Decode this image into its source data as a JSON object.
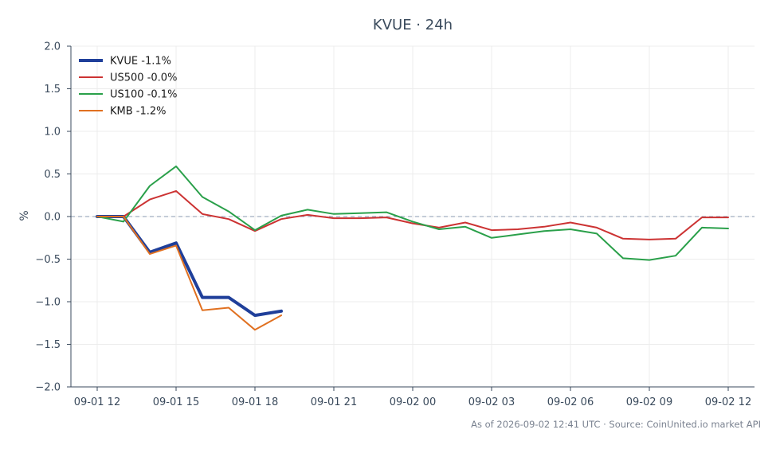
{
  "chart_data": {
    "type": "line",
    "title": "KVUE · 24h",
    "xlabel": "",
    "ylabel": "%",
    "ylim": [
      -2.0,
      2.0
    ],
    "yticks": [
      "2.0",
      "1.5",
      "1.0",
      "0.5",
      "0.0",
      "−0.5",
      "−1.0",
      "−1.5",
      "−2.0"
    ],
    "ytick_values": [
      2.0,
      1.5,
      1.0,
      0.5,
      0.0,
      -0.5,
      -1.0,
      -1.5,
      -2.0
    ],
    "xlim": [
      "09-01 11:00",
      "09-02 13:00"
    ],
    "xticks": [
      "09-01 12",
      "09-01 15",
      "09-01 18",
      "09-01 21",
      "09-02 00",
      "09-02 03",
      "09-02 06",
      "09-02 09",
      "09-02 12"
    ],
    "xtick_hours": [
      12,
      15,
      18,
      21,
      24,
      27,
      30,
      33,
      36
    ],
    "grid": true,
    "zero_line": true,
    "legend_position": "top-left",
    "series": [
      {
        "name": "KVUE -1.1%",
        "color": "#1f3f9a",
        "width": 4,
        "hours": [
          12,
          13,
          14,
          15,
          16,
          17,
          18,
          19
        ],
        "values": [
          0.0,
          0.0,
          -0.42,
          -0.31,
          -0.95,
          -0.95,
          -1.16,
          -1.11
        ]
      },
      {
        "name": "US500 -0.0%",
        "color": "#cc3333",
        "width": 2,
        "hours": [
          12,
          13,
          14,
          15,
          16,
          17,
          18,
          19,
          20,
          21,
          22,
          23,
          24,
          25,
          26,
          27,
          28,
          29,
          30,
          31,
          32,
          33,
          34,
          35,
          36
        ],
        "values": [
          0.0,
          0.0,
          0.2,
          0.3,
          0.03,
          -0.03,
          -0.17,
          -0.03,
          0.02,
          -0.02,
          -0.02,
          -0.01,
          -0.08,
          -0.13,
          -0.07,
          -0.16,
          -0.15,
          -0.12,
          -0.07,
          -0.13,
          -0.26,
          -0.27,
          -0.26,
          -0.01,
          -0.01
        ]
      },
      {
        "name": "US100 -0.1%",
        "color": "#2aa04a",
        "width": 2,
        "hours": [
          12,
          13,
          14,
          15,
          16,
          17,
          18,
          19,
          20,
          21,
          22,
          23,
          24,
          25,
          26,
          27,
          28,
          29,
          30,
          31,
          32,
          33,
          34,
          35,
          36
        ],
        "values": [
          0.0,
          -0.06,
          0.36,
          0.59,
          0.23,
          0.06,
          -0.16,
          0.01,
          0.08,
          0.03,
          0.04,
          0.05,
          -0.06,
          -0.15,
          -0.12,
          -0.25,
          -0.21,
          -0.17,
          -0.15,
          -0.2,
          -0.49,
          -0.51,
          -0.46,
          -0.13,
          -0.14
        ]
      },
      {
        "name": "KMB -1.2%",
        "color": "#e07020",
        "width": 2,
        "hours": [
          12,
          13,
          14,
          15,
          16,
          17,
          18,
          19
        ],
        "values": [
          0.0,
          0.0,
          -0.44,
          -0.34,
          -1.1,
          -1.07,
          -1.33,
          -1.16
        ]
      }
    ]
  },
  "footer": "As of 2026-09-02 12:41 UTC · Source: CoinUnited.io market API"
}
